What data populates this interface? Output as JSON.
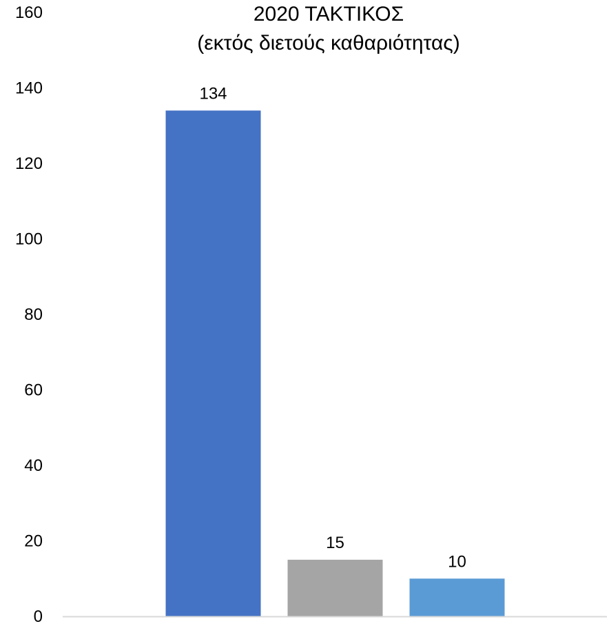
{
  "chart_data": {
    "type": "bar",
    "title": "2020 ΤΑΚΤΙΚΟΣ",
    "subtitle": "(εκτός διετούς καθαριότητας)",
    "categories": [
      "",
      "",
      ""
    ],
    "values": [
      134,
      15,
      10
    ],
    "data_labels": [
      "134",
      "15",
      "10"
    ],
    "colors": [
      "#4472C4",
      "#A5A5A5",
      "#5B9BD5"
    ],
    "ylim": [
      0,
      160
    ],
    "yticks": [
      0,
      20,
      40,
      60,
      80,
      100,
      120,
      140,
      160
    ],
    "ytick_labels": [
      "0",
      "20",
      "40",
      "60",
      "80",
      "100",
      "120",
      "140",
      "160"
    ],
    "xlabel": "",
    "ylabel": "",
    "grid": false,
    "legend": "none",
    "axis_color": "#D9D9D9"
  }
}
